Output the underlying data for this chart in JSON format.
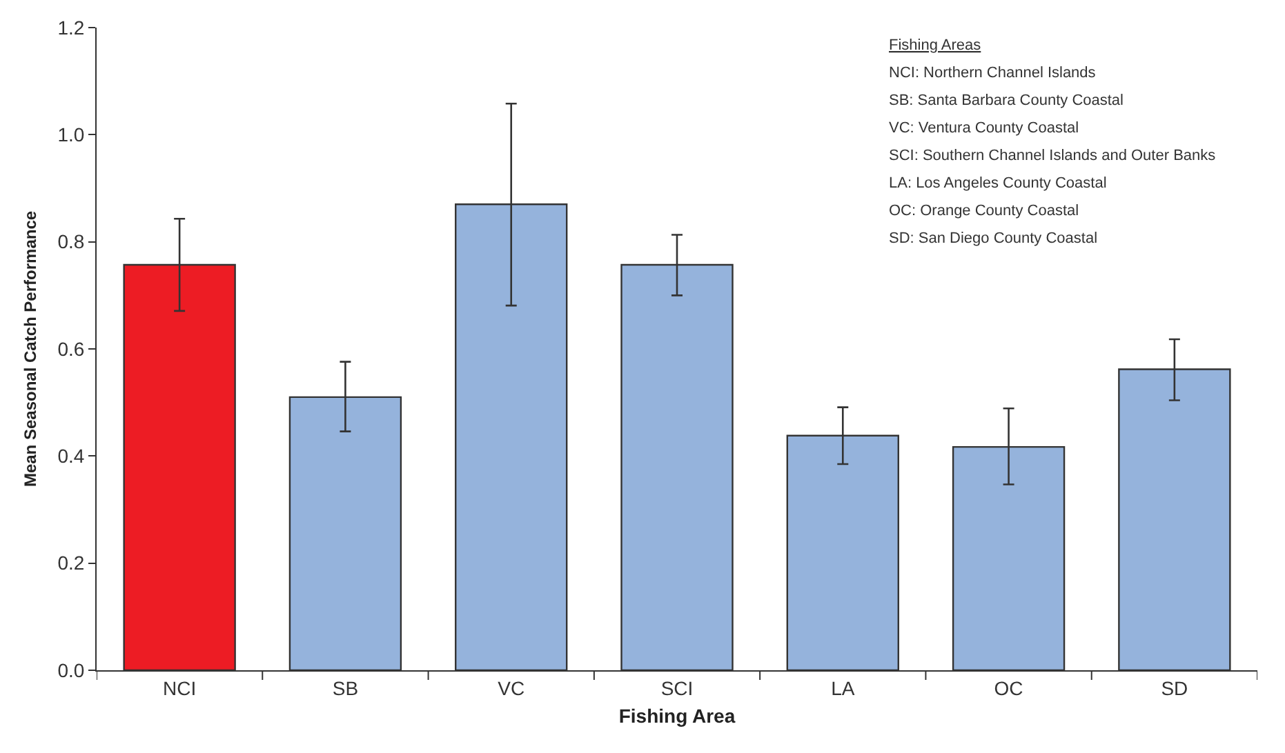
{
  "chart_data": {
    "type": "bar",
    "xlabel": "Fishing Area",
    "ylabel": "Mean Seasonal Catch Performance",
    "categories": [
      "NCI",
      "SB",
      "VC",
      "SCI",
      "LA",
      "OC",
      "SD"
    ],
    "values": [
      0.757,
      0.51,
      0.87,
      0.757,
      0.438,
      0.417,
      0.562
    ],
    "colors": [
      "#ed1c24",
      "#95b3dc",
      "#95b3dc",
      "#95b3dc",
      "#95b3dc",
      "#95b3dc",
      "#95b3dc"
    ],
    "errors": [
      [
        0.671,
        0.843
      ],
      [
        0.446,
        0.576
      ],
      [
        0.681,
        1.058
      ],
      [
        0.7,
        0.813
      ],
      [
        0.385,
        0.491
      ],
      [
        0.347,
        0.489
      ],
      [
        0.504,
        0.618
      ]
    ],
    "ylim": [
      0,
      1.2
    ],
    "yticks": [
      {
        "value": 0,
        "label": "0.0"
      },
      {
        "value": 0.2,
        "label": "0.2"
      },
      {
        "value": 0.4,
        "label": "0.4"
      },
      {
        "value": 0.6,
        "label": "0.6"
      },
      {
        "value": 0.8,
        "label": "0.8"
      },
      {
        "value": 1,
        "label": "1.0"
      },
      {
        "value": 1.2,
        "label": "1.2"
      }
    ],
    "grid": false,
    "annotations": [
      "Fishing Areas",
      "NCI: Northern Channel Islands",
      "SB: Santa Barbara County Coastal",
      "VC: Ventura County Coastal",
      "SCI: Southern Channel Islands and Outer Banks",
      "LA: Los Angeles County Coastal",
      "OC: Orange County Coastal",
      "SD: San Diego County Coastal"
    ]
  }
}
